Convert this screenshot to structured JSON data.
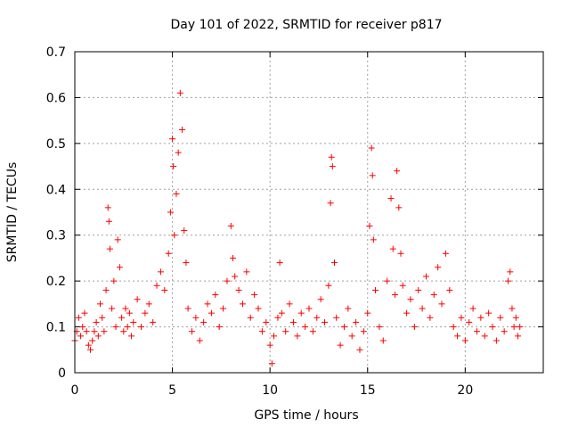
{
  "chart_data": {
    "type": "scatter",
    "title": "Day 101 of 2022, SRMTID for receiver p817",
    "xlabel": "GPS time / hours",
    "ylabel": "SRMTID / TECUs",
    "xlim": [
      0,
      24
    ],
    "ylim": [
      0,
      0.7
    ],
    "x_ticks": [
      0,
      5,
      10,
      15,
      20
    ],
    "x_tick_labels": [
      "0",
      "5",
      "10",
      "15",
      "20"
    ],
    "y_ticks": [
      0,
      0.1,
      0.2,
      0.3,
      0.4,
      0.5,
      0.6,
      0.7
    ],
    "y_tick_labels": [
      "0",
      "0.1",
      "0.2",
      "0.3",
      "0.4",
      "0.5",
      "0.6",
      "0.7"
    ],
    "grid": true,
    "marker": "+",
    "marker_color": "#ff0000",
    "series": [
      {
        "name": "SRMTID",
        "points": [
          [
            0.0,
            0.07
          ],
          [
            0.1,
            0.09
          ],
          [
            0.2,
            0.12
          ],
          [
            0.3,
            0.08
          ],
          [
            0.4,
            0.1
          ],
          [
            0.5,
            0.13
          ],
          [
            0.6,
            0.09
          ],
          [
            0.7,
            0.06
          ],
          [
            0.8,
            0.05
          ],
          [
            0.9,
            0.07
          ],
          [
            1.0,
            0.09
          ],
          [
            1.1,
            0.11
          ],
          [
            1.2,
            0.08
          ],
          [
            1.3,
            0.15
          ],
          [
            1.4,
            0.12
          ],
          [
            1.5,
            0.09
          ],
          [
            1.6,
            0.18
          ],
          [
            1.7,
            0.36
          ],
          [
            1.75,
            0.33
          ],
          [
            1.8,
            0.27
          ],
          [
            1.9,
            0.14
          ],
          [
            2.0,
            0.2
          ],
          [
            2.1,
            0.1
          ],
          [
            2.2,
            0.29
          ],
          [
            2.3,
            0.23
          ],
          [
            2.4,
            0.12
          ],
          [
            2.5,
            0.09
          ],
          [
            2.6,
            0.14
          ],
          [
            2.7,
            0.1
          ],
          [
            2.8,
            0.13
          ],
          [
            2.9,
            0.08
          ],
          [
            3.0,
            0.11
          ],
          [
            3.2,
            0.16
          ],
          [
            3.4,
            0.1
          ],
          [
            3.6,
            0.13
          ],
          [
            3.8,
            0.15
          ],
          [
            4.0,
            0.11
          ],
          [
            4.2,
            0.19
          ],
          [
            4.4,
            0.22
          ],
          [
            4.6,
            0.18
          ],
          [
            4.8,
            0.26
          ],
          [
            4.9,
            0.35
          ],
          [
            5.0,
            0.51
          ],
          [
            5.05,
            0.45
          ],
          [
            5.1,
            0.3
          ],
          [
            5.2,
            0.39
          ],
          [
            5.3,
            0.48
          ],
          [
            5.4,
            0.61
          ],
          [
            5.5,
            0.53
          ],
          [
            5.6,
            0.31
          ],
          [
            5.7,
            0.24
          ],
          [
            5.8,
            0.14
          ],
          [
            6.0,
            0.09
          ],
          [
            6.2,
            0.12
          ],
          [
            6.4,
            0.07
          ],
          [
            6.6,
            0.11
          ],
          [
            6.8,
            0.15
          ],
          [
            7.0,
            0.13
          ],
          [
            7.2,
            0.17
          ],
          [
            7.4,
            0.1
          ],
          [
            7.6,
            0.14
          ],
          [
            7.8,
            0.2
          ],
          [
            8.0,
            0.32
          ],
          [
            8.1,
            0.25
          ],
          [
            8.2,
            0.21
          ],
          [
            8.4,
            0.18
          ],
          [
            8.6,
            0.15
          ],
          [
            8.8,
            0.22
          ],
          [
            9.0,
            0.12
          ],
          [
            9.2,
            0.17
          ],
          [
            9.4,
            0.14
          ],
          [
            9.6,
            0.09
          ],
          [
            9.8,
            0.11
          ],
          [
            10.0,
            0.06
          ],
          [
            10.1,
            0.02
          ],
          [
            10.2,
            0.08
          ],
          [
            10.4,
            0.12
          ],
          [
            10.5,
            0.24
          ],
          [
            10.6,
            0.13
          ],
          [
            10.8,
            0.09
          ],
          [
            11.0,
            0.15
          ],
          [
            11.2,
            0.11
          ],
          [
            11.4,
            0.08
          ],
          [
            11.6,
            0.13
          ],
          [
            11.8,
            0.1
          ],
          [
            12.0,
            0.14
          ],
          [
            12.2,
            0.09
          ],
          [
            12.4,
            0.12
          ],
          [
            12.6,
            0.16
          ],
          [
            12.8,
            0.11
          ],
          [
            13.0,
            0.19
          ],
          [
            13.1,
            0.37
          ],
          [
            13.15,
            0.47
          ],
          [
            13.2,
            0.45
          ],
          [
            13.3,
            0.24
          ],
          [
            13.4,
            0.12
          ],
          [
            13.6,
            0.06
          ],
          [
            13.8,
            0.1
          ],
          [
            14.0,
            0.14
          ],
          [
            14.2,
            0.08
          ],
          [
            14.4,
            0.11
          ],
          [
            14.6,
            0.05
          ],
          [
            14.8,
            0.09
          ],
          [
            15.0,
            0.13
          ],
          [
            15.1,
            0.32
          ],
          [
            15.2,
            0.49
          ],
          [
            15.25,
            0.43
          ],
          [
            15.3,
            0.29
          ],
          [
            15.4,
            0.18
          ],
          [
            15.6,
            0.1
          ],
          [
            15.8,
            0.07
          ],
          [
            16.0,
            0.2
          ],
          [
            16.2,
            0.38
          ],
          [
            16.3,
            0.27
          ],
          [
            16.4,
            0.17
          ],
          [
            16.5,
            0.44
          ],
          [
            16.6,
            0.36
          ],
          [
            16.7,
            0.26
          ],
          [
            16.8,
            0.19
          ],
          [
            17.0,
            0.13
          ],
          [
            17.2,
            0.16
          ],
          [
            17.4,
            0.1
          ],
          [
            17.6,
            0.18
          ],
          [
            17.8,
            0.14
          ],
          [
            18.0,
            0.21
          ],
          [
            18.2,
            0.12
          ],
          [
            18.4,
            0.17
          ],
          [
            18.6,
            0.23
          ],
          [
            18.8,
            0.15
          ],
          [
            19.0,
            0.26
          ],
          [
            19.2,
            0.18
          ],
          [
            19.4,
            0.1
          ],
          [
            19.6,
            0.08
          ],
          [
            19.8,
            0.12
          ],
          [
            20.0,
            0.07
          ],
          [
            20.2,
            0.11
          ],
          [
            20.4,
            0.14
          ],
          [
            20.6,
            0.09
          ],
          [
            20.8,
            0.12
          ],
          [
            21.0,
            0.08
          ],
          [
            21.2,
            0.13
          ],
          [
            21.4,
            0.1
          ],
          [
            21.6,
            0.07
          ],
          [
            21.8,
            0.12
          ],
          [
            22.0,
            0.09
          ],
          [
            22.2,
            0.2
          ],
          [
            22.3,
            0.22
          ],
          [
            22.4,
            0.14
          ],
          [
            22.5,
            0.1
          ],
          [
            22.6,
            0.12
          ],
          [
            22.7,
            0.08
          ],
          [
            22.8,
            0.1
          ]
        ]
      }
    ]
  }
}
